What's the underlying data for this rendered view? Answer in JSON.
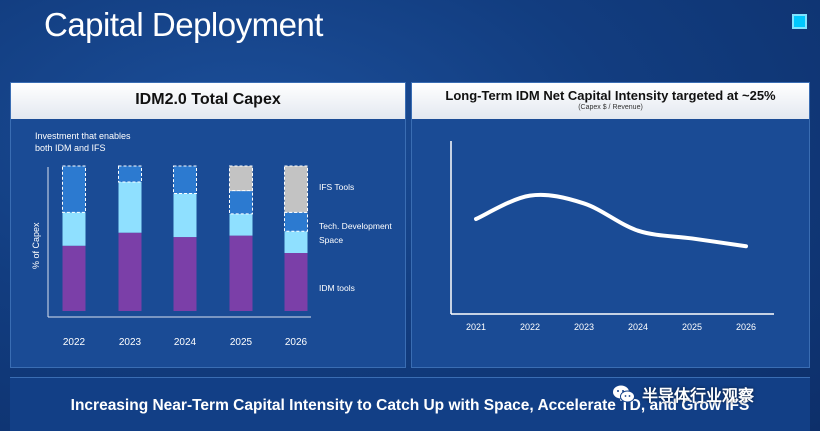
{
  "page": {
    "title": "Capital Deployment"
  },
  "colors": {
    "idm_tools": "#7b3fa8",
    "space": "#8fe0ff",
    "tech_development": "#2c7ad0",
    "ifs_tools": "#c3c3c3",
    "accent": "#00c7fd"
  },
  "bottom": {
    "text": "Increasing Near-Term Capital Intensity to Catch Up with Space, Accelerate TD, and Grow IFS",
    "watermark": "半导体行业观察"
  },
  "chart_data": [
    {
      "type": "bar",
      "title": "IDM2.0 Total Capex",
      "ylabel": "% of Capex",
      "annotation": "Investment that enables both IDM and IFS",
      "categories": [
        "2022",
        "2023",
        "2024",
        "2025",
        "2026"
      ],
      "stacked": true,
      "series": [
        {
          "name": "IDM tools",
          "values": [
            45,
            54,
            51,
            52,
            40
          ]
        },
        {
          "name": "Space",
          "values": [
            23,
            35,
            30,
            15,
            15
          ]
        },
        {
          "name": "Tech. Development",
          "values": [
            32,
            11,
            19,
            16,
            13
          ]
        },
        {
          "name": "IFS Tools",
          "values": [
            0,
            0,
            0,
            17,
            32
          ]
        }
      ],
      "ylim": [
        0,
        100
      ]
    },
    {
      "type": "line",
      "title": "Long-Term IDM Net Capital Intensity targeted at ~25%",
      "subtitle": "(Capex $ / Revenue)",
      "x": [
        "2021",
        "2022",
        "2023",
        "2024",
        "2025",
        "2026"
      ],
      "series": [
        {
          "values": [
            27,
            33,
            31,
            24,
            22,
            20
          ]
        }
      ]
    }
  ]
}
